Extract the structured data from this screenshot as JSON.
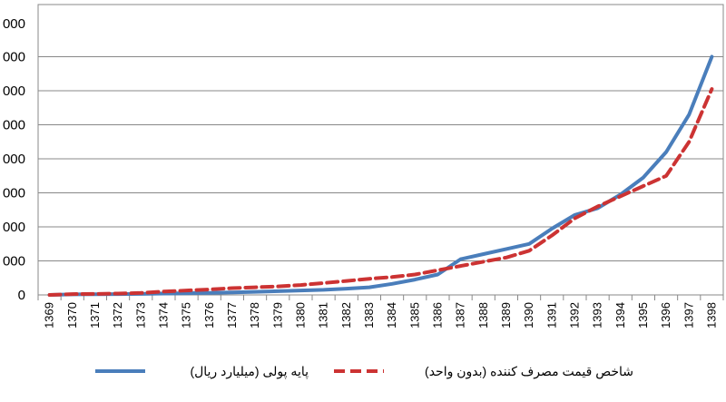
{
  "chart_data": {
    "type": "line",
    "x": [
      "1369",
      "1370",
      "1371",
      "1372",
      "1373",
      "1374",
      "1375",
      "1376",
      "1377",
      "1378",
      "1379",
      "1380",
      "1381",
      "1382",
      "1383",
      "1384",
      "1385",
      "1386",
      "1387",
      "1388",
      "1389",
      "1390",
      "1391",
      "1392",
      "1393",
      "1394",
      "1395",
      "1396",
      "1397",
      "1398"
    ],
    "y_tick_labels": [
      "0",
      "000",
      "000",
      "000",
      "000",
      "000",
      "000",
      "000",
      "000"
    ],
    "series": [
      {
        "name": "پایه پولی (میلیارد ریال)",
        "style": "solid",
        "color": "#4a7ebb",
        "values": [
          0,
          0.03,
          0.04,
          0.05,
          0.06,
          0.08,
          0.1,
          0.12,
          0.15,
          0.18,
          0.22,
          0.26,
          0.3,
          0.37,
          0.45,
          0.65,
          0.9,
          1.2,
          2.1,
          2.4,
          2.7,
          3.0,
          3.9,
          4.7,
          5.1,
          5.9,
          6.9,
          8.4,
          10.6,
          14.0
        ]
      },
      {
        "name": "شاخص قیمت مصرف کننده (بدون واحد)",
        "style": "dashed",
        "color": "#cc3333",
        "values": [
          0,
          0.05,
          0.06,
          0.08,
          0.12,
          0.2,
          0.26,
          0.32,
          0.4,
          0.45,
          0.5,
          0.58,
          0.7,
          0.82,
          0.95,
          1.05,
          1.2,
          1.45,
          1.7,
          1.95,
          2.2,
          2.6,
          3.5,
          4.5,
          5.2,
          5.8,
          6.4,
          7.0,
          9.0,
          12.1
        ]
      }
    ],
    "ylim": [
      0,
      16
    ],
    "grid": "horizontal",
    "legend_position": "bottom"
  }
}
